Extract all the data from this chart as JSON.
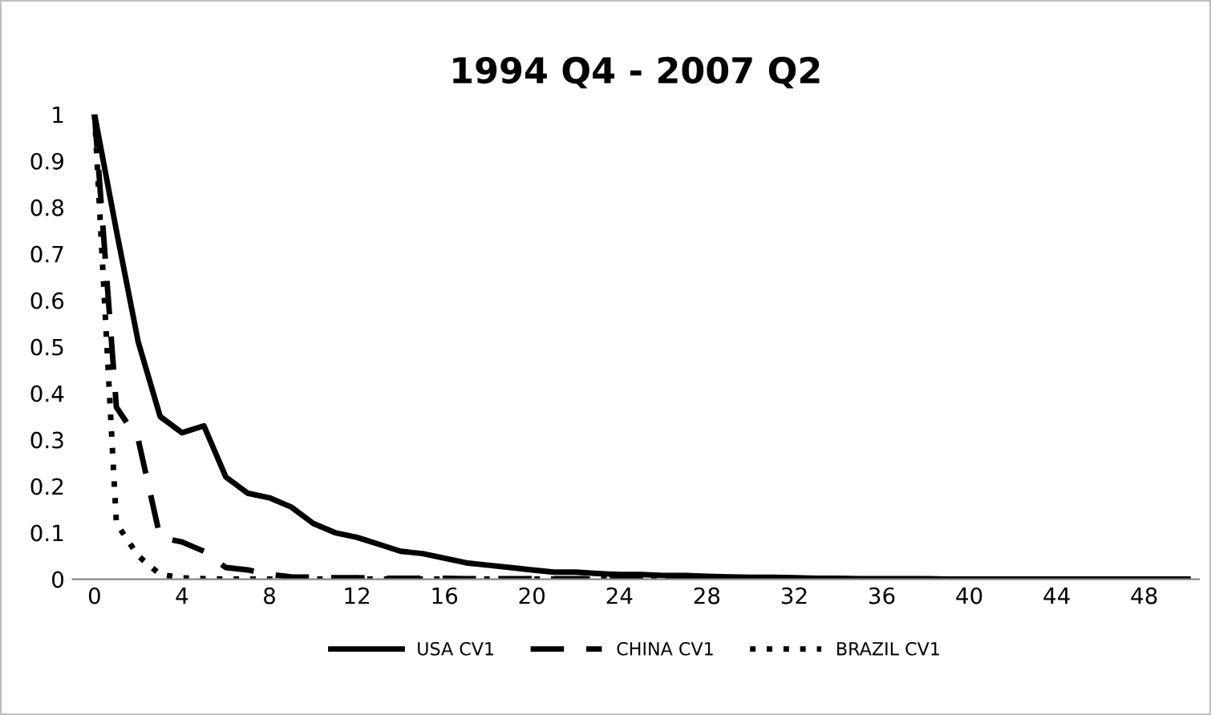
{
  "chart_data": {
    "type": "line",
    "title": "1994 Q4 - 2007 Q2",
    "x": [
      0,
      1,
      2,
      3,
      4,
      5,
      6,
      7,
      8,
      9,
      10,
      11,
      12,
      13,
      14,
      15,
      16,
      17,
      18,
      19,
      20,
      21,
      22,
      23,
      24,
      25,
      26,
      27,
      28,
      29,
      30,
      31,
      32,
      33,
      34,
      35,
      36,
      37,
      38,
      39,
      40,
      41,
      42,
      43,
      44,
      45,
      46,
      47,
      48,
      49,
      50
    ],
    "series": [
      {
        "name": "USA CV1",
        "color": "#000000",
        "line_style": "solid",
        "values": [
          1,
          0.75,
          0.51,
          0.35,
          0.315,
          0.33,
          0.22,
          0.185,
          0.175,
          0.155,
          0.12,
          0.1,
          0.09,
          0.075,
          0.06,
          0.055,
          0.045,
          0.035,
          0.03,
          0.025,
          0.02,
          0.015,
          0.015,
          0.012,
          0.01,
          0.01,
          0.008,
          0.008,
          0.006,
          0.005,
          0.004,
          0.004,
          0.003,
          0.002,
          0.002,
          0.001,
          0.001,
          0.001,
          0.001,
          0,
          0,
          0,
          0,
          0,
          0,
          0,
          0,
          0,
          0,
          0,
          0
        ]
      },
      {
        "name": "CHINA CV1",
        "color": "#000000",
        "line_style": "dashed",
        "values": [
          1,
          0.37,
          0.3,
          0.09,
          0.08,
          0.06,
          0.025,
          0.02,
          0.01,
          0.005,
          0.004,
          0.003,
          0.003,
          0.002,
          0.002,
          0.002,
          0.002,
          0.001,
          0.001,
          0.001,
          0.001,
          0.001,
          0.001,
          0.001,
          0.001,
          0,
          0,
          0,
          0,
          0,
          0,
          0,
          0,
          0,
          0,
          0,
          0,
          0,
          0,
          0,
          0,
          0,
          0,
          0,
          0,
          0,
          0,
          0,
          0,
          0,
          0
        ]
      },
      {
        "name": "BRAZIL CV1",
        "color": "#000000",
        "line_style": "dotted",
        "values": [
          1,
          0.12,
          0.05,
          0.01,
          0.003,
          0.001,
          0,
          0,
          0,
          0,
          0,
          0,
          0,
          0,
          0,
          0,
          0,
          0,
          0,
          0,
          0,
          0,
          0,
          0,
          0,
          0,
          0,
          0,
          0,
          0,
          0,
          0,
          0,
          0,
          0,
          0,
          0,
          0,
          0,
          0,
          0,
          0,
          0,
          0,
          0,
          0,
          0,
          0,
          0,
          0,
          0
        ]
      }
    ],
    "xlim": [
      -1,
      50.5
    ],
    "xticks": [
      0,
      4,
      8,
      12,
      16,
      20,
      24,
      28,
      32,
      36,
      40,
      44,
      48
    ],
    "ylim": [
      0,
      1
    ],
    "yticks": [
      0,
      0.1,
      0.2,
      0.3,
      0.4,
      0.5,
      0.6,
      0.7,
      0.8,
      0.9,
      1
    ],
    "grid": false,
    "legend": "bottom"
  }
}
